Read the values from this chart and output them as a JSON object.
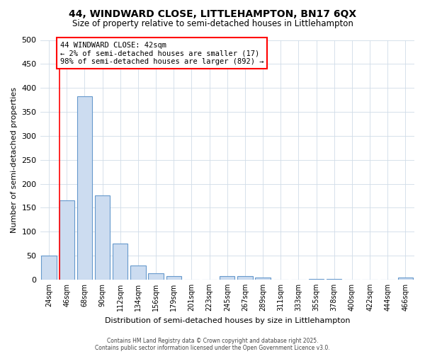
{
  "title": "44, WINDWARD CLOSE, LITTLEHAMPTON, BN17 6QX",
  "subtitle": "Size of property relative to semi-detached houses in Littlehampton",
  "xlabel": "Distribution of semi-detached houses by size in Littlehampton",
  "ylabel": "Number of semi-detached properties",
  "categories": [
    "24sqm",
    "46sqm",
    "68sqm",
    "90sqm",
    "112sqm",
    "134sqm",
    "156sqm",
    "179sqm",
    "201sqm",
    "223sqm",
    "245sqm",
    "267sqm",
    "289sqm",
    "311sqm",
    "333sqm",
    "355sqm",
    "378sqm",
    "400sqm",
    "422sqm",
    "444sqm",
    "466sqm"
  ],
  "values": [
    50,
    165,
    383,
    175,
    75,
    30,
    13,
    8,
    0,
    0,
    8,
    8,
    4,
    0,
    0,
    2,
    2,
    0,
    0,
    0,
    4
  ],
  "bar_color": "#ccdcf0",
  "bar_edge_color": "#6699cc",
  "annotation_title": "44 WINDWARD CLOSE: 42sqm",
  "annotation_line1": "← 2% of semi-detached houses are smaller (17)",
  "annotation_line2": "98% of semi-detached houses are larger (892) →",
  "footer_line1": "Contains HM Land Registry data © Crown copyright and database right 2025.",
  "footer_line2": "Contains public sector information licensed under the Open Government Licence v3.0.",
  "ylim": [
    0,
    500
  ],
  "yticks": [
    0,
    50,
    100,
    150,
    200,
    250,
    300,
    350,
    400,
    450,
    500
  ],
  "bg_color": "#ffffff",
  "grid_color": "#d0dce8"
}
